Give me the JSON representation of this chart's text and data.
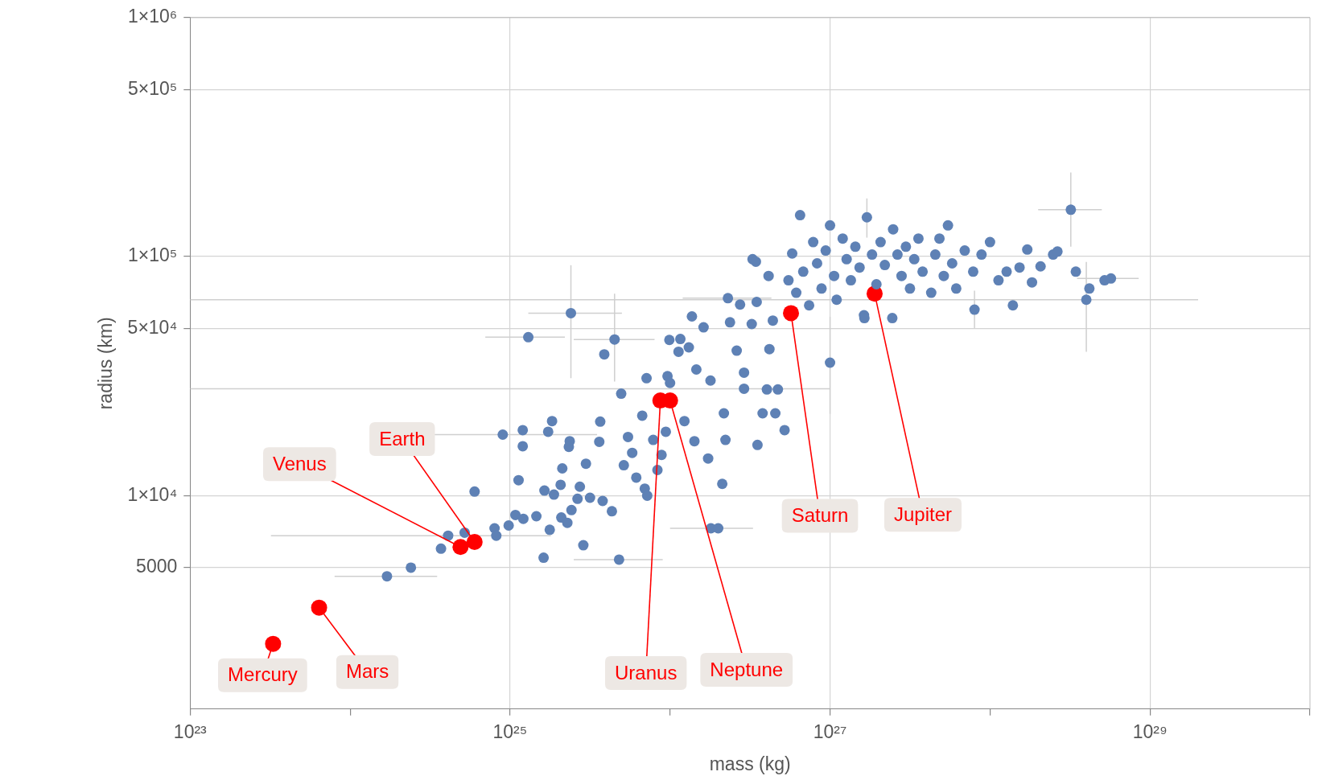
{
  "chart_data": {
    "type": "scatter",
    "xlabel": "mass (kg)",
    "ylabel": "radius (km)",
    "log": "xy",
    "grid": true,
    "legend": false,
    "marker": "circle",
    "xlim": [
      1e+23,
      1e+30
    ],
    "xticks": [
      {
        "value": 1e+23,
        "label": "10²³"
      },
      {
        "value": 1e+24,
        "label": null
      },
      {
        "value": 1e+25,
        "label": "10²⁵"
      },
      {
        "value": 1e+26,
        "label": null
      },
      {
        "value": 1e+27,
        "label": "10²⁷"
      },
      {
        "value": 1e+28,
        "label": null
      },
      {
        "value": 1e+29,
        "label": "10²⁹"
      },
      {
        "value": 1e+30,
        "label": null
      }
    ],
    "ylim": [
      1280,
      1000000
    ],
    "yticks": [
      5000,
      {
        "value": 10000,
        "label": "1×10⁴"
      },
      {
        "value": 50000,
        "label": "5×10⁴"
      },
      {
        "value": 100000,
        "label": "1×10⁵"
      },
      {
        "value": 500000,
        "label": "5×10⁵"
      },
      {
        "value": 1000000,
        "label": "1×10⁶"
      }
    ],
    "series": [
      {
        "color": "#5e81b5",
        "x": [
          2.4e+25,
          1.3e+25,
          1.1e+27,
          2.9e+26,
          3.2e+28,
          4e+28,
          1e+27,
          1.8e+26,
          4.5e+25,
          4.1e+24,
          1.7e+24,
          9e+24,
          5.7e+28,
          1.7e+27,
          2.3e+26,
          8e+27,
          4.8e+25,
          2.4e+24,
          3.7e+24,
          5.2e+24,
          6e+24,
          8e+24,
          8.2e+24,
          9.8e+24,
          1.08e+25,
          1.21e+25,
          1.13e+25,
          1.2e+25,
          1.2e+25,
          1.46e+25,
          1.62e+25,
          1.77e+25,
          1.83e+25,
          1.73e+25,
          1.64e+25,
          1.88e+25,
          2.07e+25,
          2.09e+25,
          2.28e+25,
          2.36e+25,
          2.33e+25,
          2.12e+25,
          2.42e+25,
          2.64e+25,
          2.73e+25,
          2.87e+25,
          2.98e+25,
          3.16e+25,
          3.66e+25,
          3.61e+25,
          3.79e+25,
          3.88e+25,
          4.95e+25,
          4.33e+25,
          5.14e+25,
          5.46e+25,
          5.8e+25,
          6.15e+25,
          6.95e+25,
          7.2e+25,
          7.13e+25,
          6.7e+25,
          7.85e+25,
          8.34e+25,
          8.85e+25,
          9.41e+25,
          9.64e+25,
          1e+26,
          9.9e+25,
          1.13e+26,
          1.16e+26,
          1.23e+26,
          1.31e+26,
          1.37e+26,
          1.42e+26,
          1.46e+26,
          1.62e+26,
          1.73e+26,
          1.79e+26,
          2e+26,
          2.12e+26,
          2.17e+26,
          2.22e+26,
          2.37e+26,
          2.61e+26,
          2.74e+26,
          2.9e+26,
          3.24e+26,
          3.48e+26,
          3.52e+26,
          3.79e+26,
          4.03e+26,
          4.18e+26,
          4.39e+26,
          4.55e+26,
          4.72e+26,
          3.28e+26,
          3.44e+26,
          5.2e+26,
          4.13e+26,
          6.5e+26,
          5.5e+26,
          5.8e+26,
          6.15e+26,
          6.8e+26,
          7.4e+26,
          7.85e+26,
          8.3e+26,
          8.85e+26,
          9.4e+26,
          1e+27,
          1.06e+27,
          1.2e+27,
          1.27e+27,
          1.35e+27,
          1.44e+27,
          1.53e+27,
          1.63e+27,
          1.83e+27,
          1.95e+27,
          2.07e+27,
          2.2e+27,
          2.48e+27,
          2.64e+27,
          2.8e+27,
          2.98e+27,
          3.16e+27,
          3.36e+27,
          3.57e+27,
          3.79e+27,
          4.29e+27,
          4.55e+27,
          4.83e+27,
          5.14e+27,
          5.46e+27,
          5.8e+27,
          6.15e+27,
          6.95e+27,
          7.85e+27,
          8.85e+27,
          1e+28,
          1.13e+28,
          1.27e+28,
          1.39e+28,
          1.53e+28,
          1.71e+28,
          1.83e+28,
          2.07e+28,
          2.48e+28,
          2.64e+28,
          3.44e+28,
          4.18e+28,
          5.2e+28,
          2.45e+27,
          1.64e+27
        ],
        "values": [
          58000,
          46000,
          66000,
          28000,
          157000,
          66000,
          36000,
          7300,
          45000,
          6800,
          4600,
          18000,
          81000,
          146000,
          67000,
          60000,
          5400,
          5000,
          6000,
          7000,
          10400,
          7300,
          6800,
          7500,
          8300,
          8000,
          11600,
          16100,
          18800,
          8200,
          5500,
          7200,
          20500,
          18500,
          10500,
          10100,
          11100,
          8100,
          7700,
          16900,
          16000,
          13000,
          8700,
          9700,
          10900,
          6200,
          13600,
          9800,
          20400,
          16800,
          9500,
          39000,
          26700,
          8600,
          13400,
          17600,
          15100,
          11900,
          10700,
          10000,
          31000,
          21600,
          17100,
          12800,
          14800,
          18500,
          31600,
          29600,
          44800,
          40000,
          45200,
          20500,
          41700,
          56200,
          16900,
          33700,
          50600,
          14300,
          30300,
          7300,
          11200,
          22100,
          17100,
          53100,
          40400,
          63000,
          32700,
          52200,
          64600,
          16300,
          22100,
          27800,
          41000,
          54000,
          22100,
          27800,
          97500,
          95200,
          18800,
          83000,
          149000,
          79600,
          103000,
          70600,
          86500,
          62500,
          115000,
          93700,
          73500,
          106000,
          135000,
          83000,
          119000,
          97500,
          79600,
          110000,
          90000,
          56800,
          102000,
          76600,
          115000,
          92200,
          130000,
          102000,
          83000,
          110000,
          73500,
          97500,
          119000,
          86500,
          70600,
          102000,
          119000,
          83000,
          135000,
          93700,
          73500,
          106000,
          86500,
          102000,
          115000,
          79600,
          86500,
          62500,
          90000,
          107000,
          78000,
          91000,
          102000,
          105000,
          86500,
          73500,
          79600,
          55300,
          55300
        ],
        "xerrors": [
          [
            1.3e+25,
            5e+25
          ],
          [
            7e+24,
            2.2e+25
          ],
          [
            1e+23,
            2e+29
          ],
          [
            1e+23,
            1e+27
          ],
          [
            2e+28,
            5e+28
          ],
          null,
          null,
          [
            1e+26,
            3.3e+26
          ],
          [
            2.5e+25,
            8e+25
          ],
          [
            3.2e+23,
            1.8e+25
          ],
          [
            8e+23,
            3.5e+24
          ],
          [
            2.2e+24,
            3.5e+25
          ],
          [
            3.5e+28,
            8.5e+28
          ],
          null,
          [
            1.2e+26,
            4.3e+26
          ],
          null,
          [
            2.5e+25,
            9e+25
          ],
          null,
          null,
          null,
          null,
          null,
          null,
          null,
          null,
          null,
          null,
          null,
          null,
          null,
          null,
          null,
          null,
          null,
          null,
          null,
          null,
          null,
          null,
          null,
          null,
          null,
          null,
          null,
          null,
          null,
          null,
          null,
          null,
          null,
          null,
          null,
          null,
          null,
          null,
          null,
          null,
          null,
          null,
          null,
          null,
          null,
          null,
          null,
          null,
          null,
          null,
          null,
          null,
          null,
          null,
          null,
          null,
          null,
          null,
          null,
          null,
          null,
          null,
          null,
          null,
          null,
          null,
          null,
          null,
          null,
          null,
          null,
          null,
          null,
          null,
          null,
          null,
          null,
          null,
          null,
          null,
          null,
          null,
          null,
          null,
          null,
          null,
          null,
          null,
          null,
          null,
          null,
          null,
          null,
          null,
          null,
          null,
          null,
          null,
          null,
          null,
          null,
          null,
          null,
          null,
          null,
          null,
          null,
          null,
          null,
          null,
          null,
          null,
          null,
          null,
          null,
          null,
          null,
          null,
          null,
          null,
          null,
          null,
          null,
          null,
          null,
          null,
          null,
          null,
          null,
          null,
          null,
          null,
          null,
          null,
          null,
          null,
          null,
          null
        ],
        "errors": [
          [
            31000,
            92000
          ],
          null,
          null,
          null,
          [
            110000,
            225000
          ],
          [
            40000,
            95000
          ],
          [
            22000,
            56000
          ],
          null,
          [
            30000,
            70000
          ],
          null,
          null,
          null,
          null,
          [
            120000,
            175000
          ],
          null,
          [
            50000,
            72000
          ],
          null,
          null,
          null,
          null,
          null,
          null,
          null,
          null,
          null,
          null,
          null,
          null,
          null,
          null,
          null,
          null,
          null,
          null,
          null,
          null,
          null,
          null,
          null,
          null,
          null,
          null,
          null,
          null,
          null,
          null,
          null,
          null,
          null,
          null,
          null,
          null,
          null,
          null,
          null,
          null,
          null,
          null,
          null,
          null,
          null,
          null,
          null,
          null,
          null,
          null,
          null,
          null,
          null,
          null,
          null,
          null,
          null,
          null,
          null,
          null,
          null,
          null,
          null,
          null,
          null,
          null,
          null,
          null,
          null,
          null,
          null,
          null,
          null,
          null,
          null,
          null,
          null,
          null,
          null,
          null,
          null,
          null,
          null,
          null,
          null,
          null,
          null,
          null,
          null,
          null,
          null,
          null,
          null,
          null,
          null,
          null,
          null,
          null,
          null,
          null,
          null,
          null,
          null,
          null,
          null,
          null,
          null,
          null,
          null,
          null,
          null,
          null,
          null,
          null,
          null,
          null,
          null,
          null,
          null,
          null,
          null,
          null,
          null,
          null,
          null,
          null,
          null,
          null,
          null,
          null,
          null,
          null,
          null,
          null,
          null,
          null,
          null,
          null,
          null
        ]
      },
      {
        "color": "#ff0000",
        "x": [
          3.3e+23,
          4.9e+24,
          6e+24,
          6.4e+23,
          1.9e+27,
          5.7e+26,
          8.7e+25,
          1e+26
        ],
        "values": [
          2400,
          6100,
          6400,
          3400,
          70000,
          58000,
          25000,
          25000
        ]
      }
    ],
    "annotations": [
      {
        "text": "Mercury",
        "x": 3.3e+23,
        "y": 2400
      },
      {
        "text": "Venus",
        "x": 4.9e+24,
        "y": 6100
      },
      {
        "text": "Earth",
        "x": 6e+24,
        "y": 6400
      },
      {
        "text": "Mars",
        "x": 6.4e+23,
        "y": 3400
      },
      {
        "text": "Jupiter",
        "x": 1.9e+27,
        "y": 70000
      },
      {
        "text": "Saturn",
        "x": 5.7e+26,
        "y": 58000
      },
      {
        "text": "Uranus",
        "x": 8.7e+25,
        "y": 25000
      },
      {
        "text": "Neptune",
        "x": 1e+26,
        "y": 25000
      }
    ]
  }
}
